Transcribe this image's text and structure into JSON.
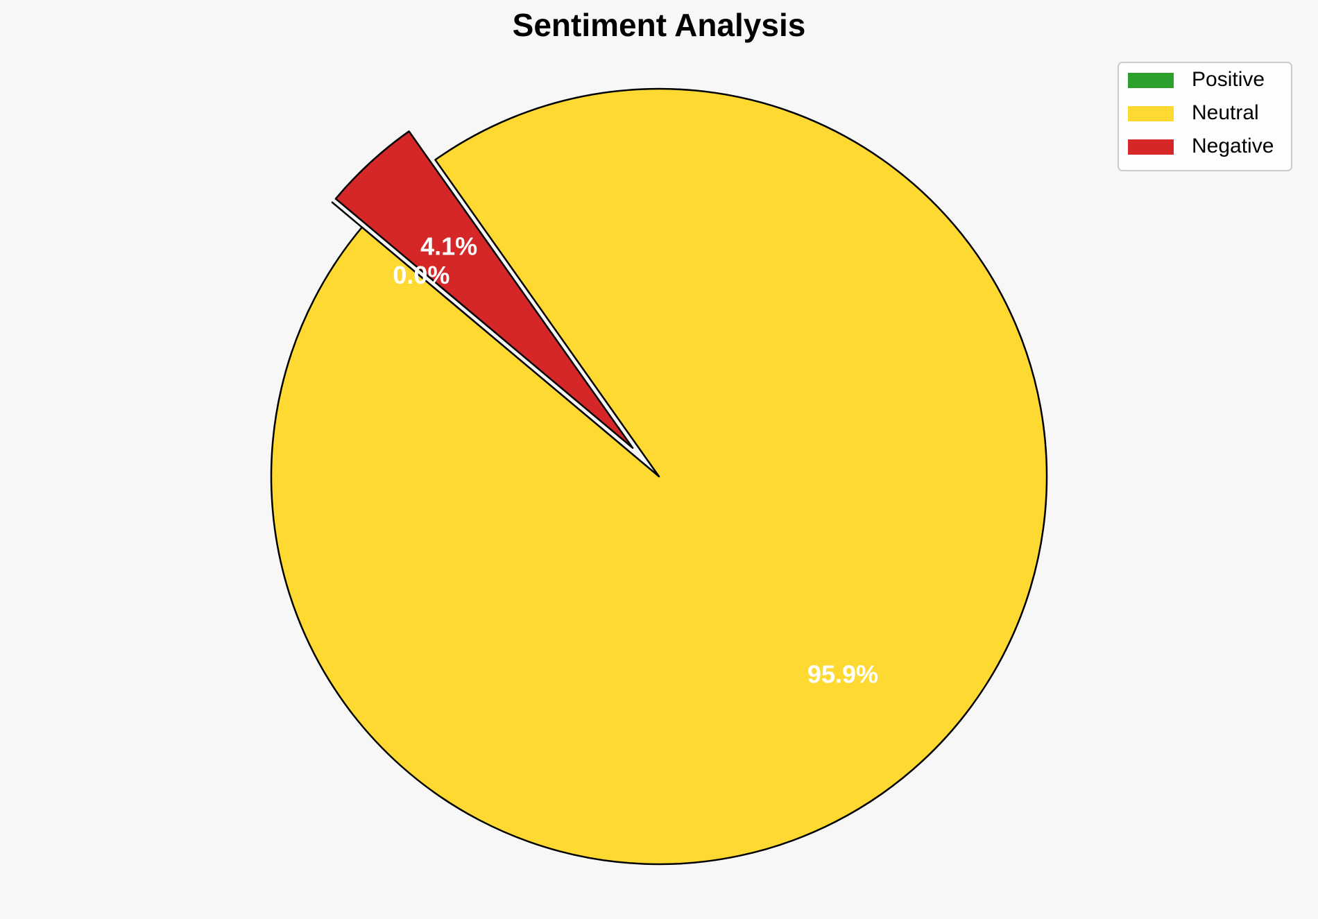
{
  "chart_data": {
    "type": "pie",
    "title": "Sentiment Analysis",
    "categories": [
      "Positive",
      "Neutral",
      "Negative"
    ],
    "values": [
      0.0,
      95.9,
      4.1
    ],
    "value_labels": [
      "0.0%",
      "95.9%",
      "4.1%"
    ],
    "colors": [
      "#2ca02c",
      "#fdd931",
      "#d62728"
    ],
    "startangle": 140,
    "explode": [
      0.1,
      0,
      0.1
    ],
    "legend": "upper right"
  }
}
